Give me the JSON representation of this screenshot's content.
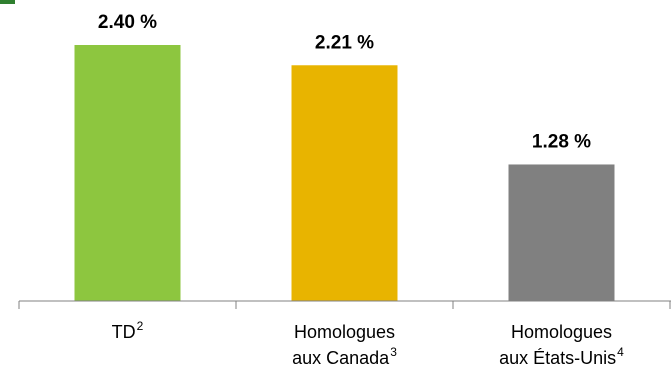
{
  "chart_data": {
    "type": "bar",
    "title": "",
    "xlabel": "",
    "ylabel": "",
    "ylim": [
      0,
      2.4
    ],
    "grid": false,
    "legend": "none",
    "categories": [
      {
        "text": "TD",
        "sup": "2"
      },
      {
        "text": "Homologues",
        "line2": "aux Canada",
        "sup": "3"
      },
      {
        "text": "Homologues",
        "line2": "aux États-Unis",
        "sup": "4"
      }
    ],
    "values": [
      2.4,
      2.21,
      1.28
    ],
    "data_labels": [
      "2.40 %",
      "2.21 %",
      "1.28 %"
    ],
    "colors": [
      "#8DC63F",
      "#E8B400",
      "#808080"
    ],
    "accent_color": "#2F7F2F"
  }
}
